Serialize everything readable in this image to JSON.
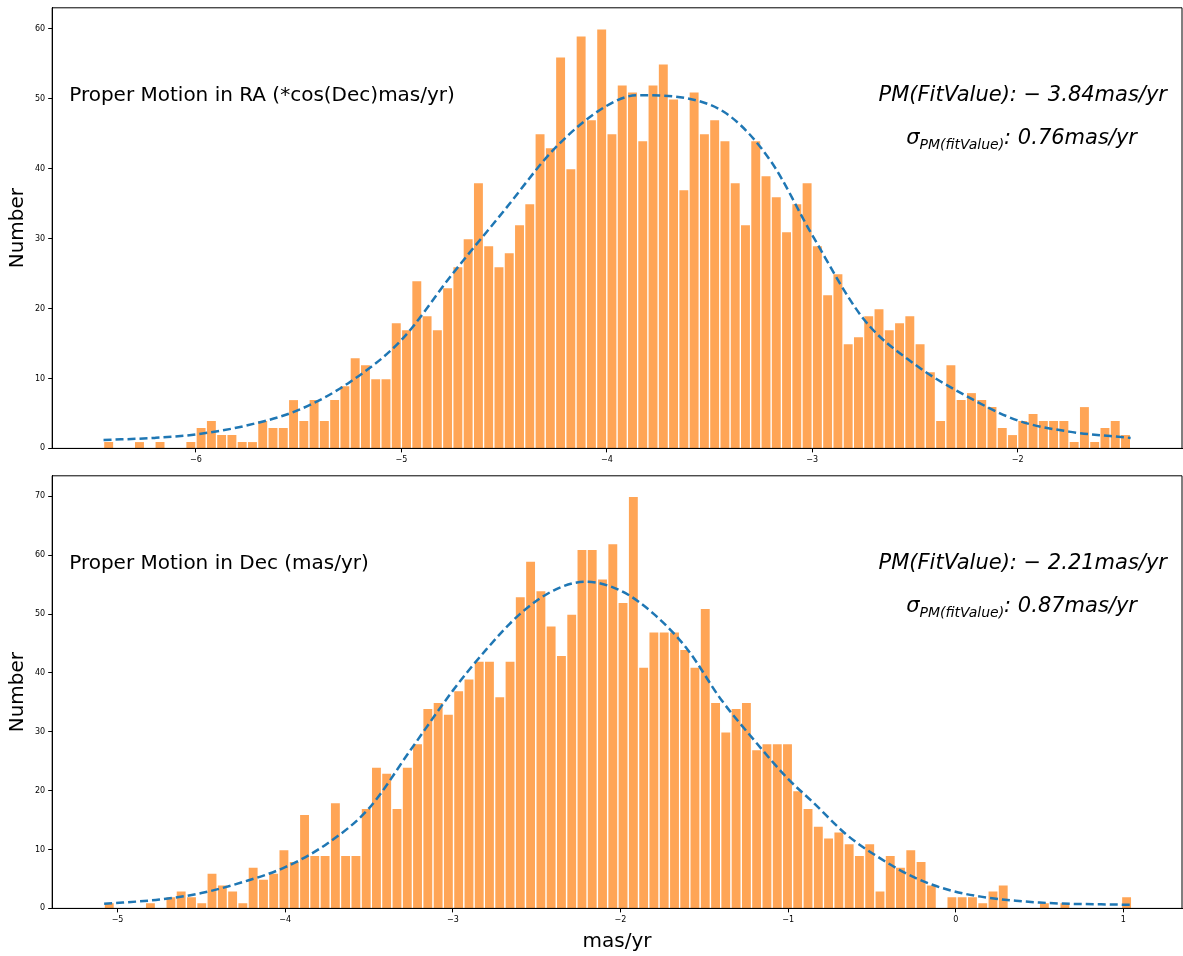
{
  "chart_data": [
    {
      "type": "histogram",
      "title": "Proper Motion in RA (*cos(Dec)mas/yr)",
      "ylabel": "Number",
      "annotations": [
        "PM(FitValue): − 3.84mas/yr",
        "σ$_{PM(fitValue)}$: 0.76mas/yr"
      ],
      "xlim": [
        -6.7,
        -1.2
      ],
      "xticks": [
        -6,
        -5,
        -4,
        -3,
        -2
      ],
      "ylim": [
        0,
        63
      ],
      "yticks": [
        0,
        10,
        20,
        30,
        40,
        50,
        60
      ],
      "series": [
        {
          "type": "histogram",
          "color": "#ffa556",
          "bins": [
            -6.45,
            -6.4,
            -6.35,
            -6.3,
            -6.25,
            -6.2,
            -6.15,
            -6.1,
            -6.05,
            -6.0,
            -5.95,
            -5.9,
            -5.85,
            -5.8,
            -5.75,
            -5.7,
            -5.65,
            -5.6,
            -5.55,
            -5.5,
            -5.45,
            -5.4,
            -5.35,
            -5.3,
            -5.25,
            -5.2,
            -5.15,
            -5.1,
            -5.05,
            -5.0,
            -4.95,
            -4.9,
            -4.85,
            -4.8,
            -4.75,
            -4.7,
            -4.65,
            -4.6,
            -4.55,
            -4.5,
            -4.45,
            -4.4,
            -4.35,
            -4.3,
            -4.25,
            -4.2,
            -4.15,
            -4.1,
            -4.05,
            -4.0,
            -3.95,
            -3.9,
            -3.85,
            -3.8,
            -3.75,
            -3.7,
            -3.65,
            -3.6,
            -3.55,
            -3.5,
            -3.45,
            -3.4,
            -3.35,
            -3.3,
            -3.25,
            -3.2,
            -3.15,
            -3.1,
            -3.05,
            -3.0,
            -2.95,
            -2.9,
            -2.85,
            -2.8,
            -2.75,
            -2.7,
            -2.65,
            -2.6,
            -2.55,
            -2.5,
            -2.45,
            -2.4,
            -2.35,
            -2.3,
            -2.25,
            -2.2,
            -2.15,
            -2.1,
            -2.05,
            -2.0,
            -1.95,
            -1.9,
            -1.85,
            -1.8,
            -1.75,
            -1.7,
            -1.65,
            -1.6,
            -1.55,
            -1.5,
            -1.45
          ],
          "values": [
            1,
            0,
            0,
            1,
            0,
            1,
            0,
            0,
            1,
            3,
            4,
            2,
            2,
            1,
            1,
            4,
            3,
            3,
            7,
            4,
            7,
            4,
            7,
            9,
            13,
            12,
            10,
            10,
            18,
            17,
            24,
            19,
            17,
            23,
            26,
            30,
            38,
            29,
            26,
            28,
            32,
            35,
            45,
            43,
            56,
            40,
            59,
            47,
            60,
            45,
            52,
            51,
            44,
            52,
            55,
            50,
            37,
            51,
            45,
            47,
            44,
            38,
            32,
            44,
            39,
            36,
            31,
            35,
            38,
            29,
            22,
            25,
            15,
            16,
            19,
            20,
            17,
            18,
            19,
            15,
            11,
            4,
            12,
            7,
            8,
            7,
            6,
            3,
            2,
            4,
            5,
            4,
            4,
            4,
            1,
            6,
            1,
            3,
            4,
            2
          ]
        },
        {
          "type": "line",
          "color": "#1f77b4",
          "line_style": "dashed",
          "x": [
            -6.45,
            -6.2,
            -6.0,
            -5.75,
            -5.5,
            -5.25,
            -5.0,
            -4.75,
            -4.5,
            -4.25,
            -4.0,
            -3.85,
            -3.6,
            -3.4,
            -3.2,
            -3.0,
            -2.75,
            -2.5,
            -2.25,
            -2.0,
            -1.75,
            -1.45
          ],
          "values": [
            1.2,
            1.5,
            2.0,
            3.3,
            5.5,
            9.5,
            15.5,
            25,
            34,
            43,
            49,
            50.5,
            50,
            47.5,
            41,
            30.5,
            18.5,
            12,
            7.5,
            4,
            2.4,
            1.5
          ]
        }
      ]
    },
    {
      "type": "histogram",
      "title": "Proper Motion in Dec (mas/yr)",
      "xlabel": "mas/yr",
      "ylabel": "Number",
      "annotations": [
        "PM(FitValue): − 2.21mas/yr",
        "σ$_{PM(fitValue)}$: 0.87mas/yr"
      ],
      "xlim": [
        -5.39,
        1.35
      ],
      "xticks": [
        -5,
        -4,
        -3,
        -2,
        -1,
        0,
        1
      ],
      "ylim": [
        0,
        73.5
      ],
      "yticks": [
        0,
        10,
        20,
        30,
        40,
        50,
        60,
        70
      ],
      "series": [
        {
          "type": "histogram",
          "color": "#ffa556",
          "bins": [
            -5.08,
            -5.019,
            -4.957,
            -4.896,
            -4.835,
            -4.773,
            -4.712,
            -4.651,
            -4.59,
            -4.528,
            -4.467,
            -4.406,
            -4.344,
            -4.283,
            -4.222,
            -4.16,
            -4.099,
            -4.038,
            -3.977,
            -3.915,
            -3.854,
            -3.793,
            -3.731,
            -3.67,
            -3.609,
            -3.547,
            -3.486,
            -3.425,
            -3.364,
            -3.302,
            -3.241,
            -3.18,
            -3.118,
            -3.057,
            -2.996,
            -2.934,
            -2.873,
            -2.812,
            -2.751,
            -2.689,
            -2.628,
            -2.567,
            -2.505,
            -2.444,
            -2.383,
            -2.321,
            -2.26,
            -2.199,
            -2.138,
            -2.076,
            -2.015,
            -1.954,
            -1.892,
            -1.831,
            -1.77,
            -1.708,
            -1.647,
            -1.586,
            -1.525,
            -1.463,
            -1.402,
            -1.341,
            -1.279,
            -1.218,
            -1.157,
            -1.095,
            -1.034,
            -0.973,
            -0.912,
            -0.85,
            -0.789,
            -0.728,
            -0.666,
            -0.605,
            -0.544,
            -0.482,
            -0.421,
            -0.36,
            -0.299,
            -0.237,
            -0.176,
            -0.115,
            -0.053,
            0.008,
            0.069,
            0.131,
            0.192,
            0.253,
            0.314,
            0.376,
            0.437,
            0.498,
            0.56,
            0.621,
            0.682,
            0.744,
            0.805,
            0.866,
            0.927,
            0.989,
            1.05
          ],
          "values": [
            1,
            0,
            0,
            0,
            1,
            0,
            2,
            3,
            2,
            1,
            6,
            4,
            3,
            1,
            7,
            5,
            6,
            10,
            8,
            16,
            9,
            9,
            18,
            9,
            9,
            17,
            24,
            23,
            17,
            24,
            28,
            34,
            35,
            33,
            37,
            39,
            42,
            42,
            36,
            42,
            53,
            59,
            54,
            48,
            43,
            50,
            61,
            61,
            56,
            62,
            52,
            70,
            41,
            47,
            47,
            47,
            44,
            41,
            51,
            35,
            30,
            34,
            35,
            27,
            28,
            28,
            28,
            20,
            17,
            14,
            12,
            13,
            11,
            9,
            11,
            3,
            9,
            7,
            10,
            8,
            4,
            0,
            2,
            2,
            2,
            1,
            3,
            4,
            0,
            0,
            0,
            1,
            0,
            1,
            0,
            0,
            0,
            0,
            0,
            2
          ]
        },
        {
          "type": "line",
          "color": "#1f77b4",
          "line_style": "dashed",
          "x": [
            -5.08,
            -4.75,
            -4.5,
            -4.25,
            -4.0,
            -3.75,
            -3.5,
            -3.25,
            -3.0,
            -2.8,
            -2.6,
            -2.4,
            -2.21,
            -2.0,
            -1.8,
            -1.6,
            -1.4,
            -1.2,
            -1.0,
            -0.85,
            -0.65,
            -0.45,
            -0.25,
            -0.05,
            0.15,
            0.5,
            1.05
          ],
          "values": [
            0.8,
            1.5,
            2.6,
            4.5,
            7,
            11,
            17,
            27,
            37,
            44,
            50,
            54,
            55.5,
            54,
            50,
            44,
            35.5,
            28.5,
            22,
            18,
            12.5,
            8.5,
            5.3,
            3.2,
            2,
            1,
            0.6
          ]
        }
      ]
    }
  ]
}
